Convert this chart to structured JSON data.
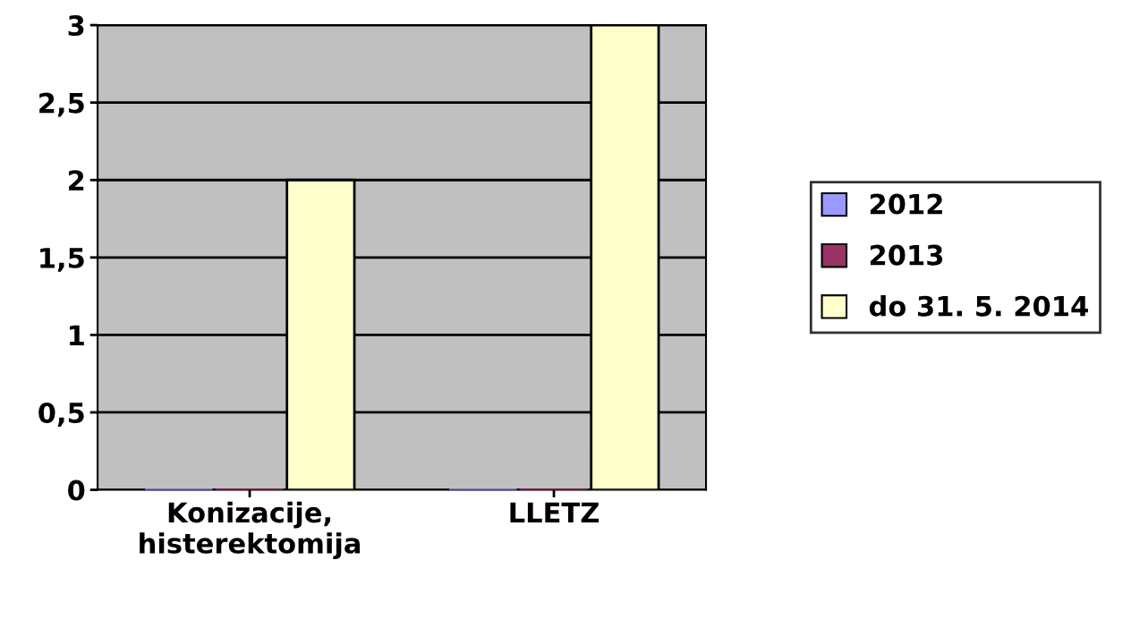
{
  "chart_data": {
    "type": "bar",
    "categories": [
      "Konizacije,\nhisterektomija",
      "LLETZ"
    ],
    "series": [
      {
        "name": "2012",
        "color": "#9999ff",
        "values": [
          0,
          0
        ]
      },
      {
        "name": "2013",
        "color": "#993366",
        "values": [
          0,
          0
        ]
      },
      {
        "name": "do 31. 5. 2014",
        "color": "#ffffcc",
        "values": [
          2,
          3
        ]
      }
    ],
    "ylim": [
      0,
      3
    ],
    "yticks": [
      0,
      {
        "value": 0.5,
        "label": "0,5"
      },
      1,
      {
        "value": 1.5,
        "label": "1,5"
      },
      2,
      {
        "value": 2.5,
        "label": "2,5"
      },
      3
    ],
    "grid": "y",
    "legend": "right"
  }
}
